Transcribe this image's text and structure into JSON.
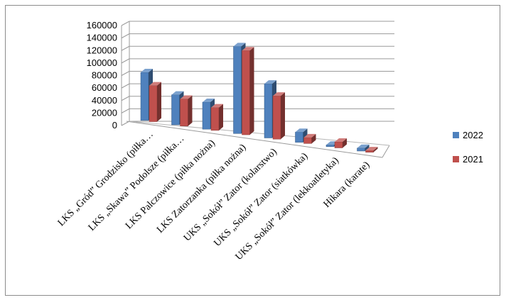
{
  "chart_data": {
    "type": "bar",
    "title": "",
    "xlabel": "",
    "ylabel": "",
    "ylim": [
      0,
      160000
    ],
    "yticks": [
      "0",
      "20000",
      "40000",
      "60000",
      "80000",
      "100000",
      "120000",
      "140000",
      "160000"
    ],
    "grid": true,
    "legend_position": "right",
    "categories": [
      "LKS „Gród” Grodzisko (piłka…",
      "LKS  „Skawa” Podolsze (piłka…",
      "LKS Palczowice (piłka nożna)",
      "LKS Zatorzanka (piłka nożna)",
      "UKS „Sokół” Zator (kolarstwo)",
      "UKS „Sokół” Zator (siatkówka)",
      "UKS „Sokół” Zator (lekkoatletyka)",
      "Hikara (karate)"
    ],
    "series": [
      {
        "name": "2022",
        "color": "#4f81bd",
        "values": [
          80000,
          50000,
          45000,
          145000,
          90000,
          17000,
          3000,
          5000
        ]
      },
      {
        "name": "2021",
        "color": "#c0504d",
        "values": [
          60000,
          45000,
          38000,
          140000,
          72000,
          10000,
          10000,
          0
        ]
      }
    ]
  }
}
